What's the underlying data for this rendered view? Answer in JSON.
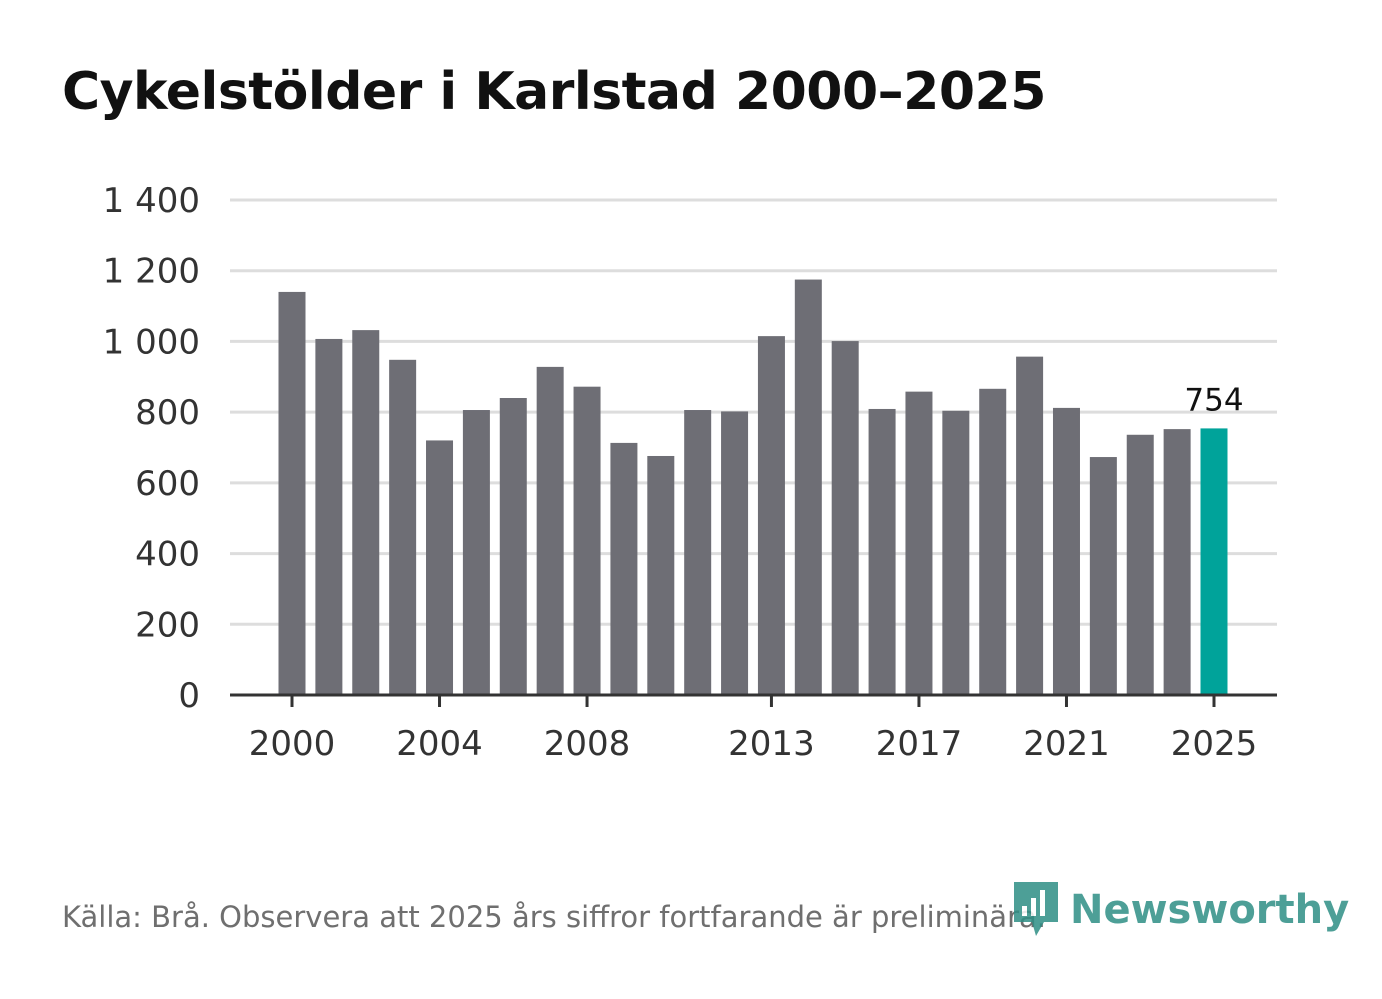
{
  "title": "Cykelstölder i Karlstad 2000–2025",
  "source": "Källa: Brå. Observera att 2025 års siffror fortfarande är preliminära.",
  "brand": {
    "name": "Newsworthy",
    "icon": "bar-chart-logo-icon"
  },
  "colors": {
    "bar": "#6e6e75",
    "highlight": "#00a39a",
    "grid": "#dddddd",
    "axis": "#333333",
    "brand": "#2f8f86"
  },
  "chart_data": {
    "type": "bar",
    "title": "Cykelstölder i Karlstad 2000–2025",
    "xlabel": "",
    "ylabel": "",
    "ylim": [
      0,
      1400
    ],
    "yticks": [
      0,
      200,
      400,
      600,
      800,
      1000,
      1200,
      1400
    ],
    "ytick_labels": [
      "0",
      "200",
      "400",
      "600",
      "800",
      "1 000",
      "1 200",
      "1 400"
    ],
    "xtick_years": [
      2000,
      2004,
      2008,
      2013,
      2017,
      2021,
      2025
    ],
    "xtick_labels": [
      "2000",
      "2004",
      "2008",
      "2013",
      "2017",
      "2021",
      "2025"
    ],
    "categories": [
      2000,
      2001,
      2002,
      2003,
      2004,
      2005,
      2006,
      2007,
      2008,
      2009,
      2010,
      2011,
      2012,
      2013,
      2014,
      2015,
      2016,
      2017,
      2018,
      2019,
      2020,
      2021,
      2022,
      2023,
      2024,
      2025
    ],
    "values": [
      1140,
      1007,
      1032,
      948,
      720,
      806,
      840,
      928,
      872,
      713,
      676,
      806,
      802,
      1015,
      1175,
      1001,
      809,
      858,
      804,
      866,
      957,
      812,
      673,
      736,
      752,
      754
    ],
    "highlight": {
      "year": 2025,
      "value": 754,
      "label": "754"
    },
    "grid": true
  }
}
